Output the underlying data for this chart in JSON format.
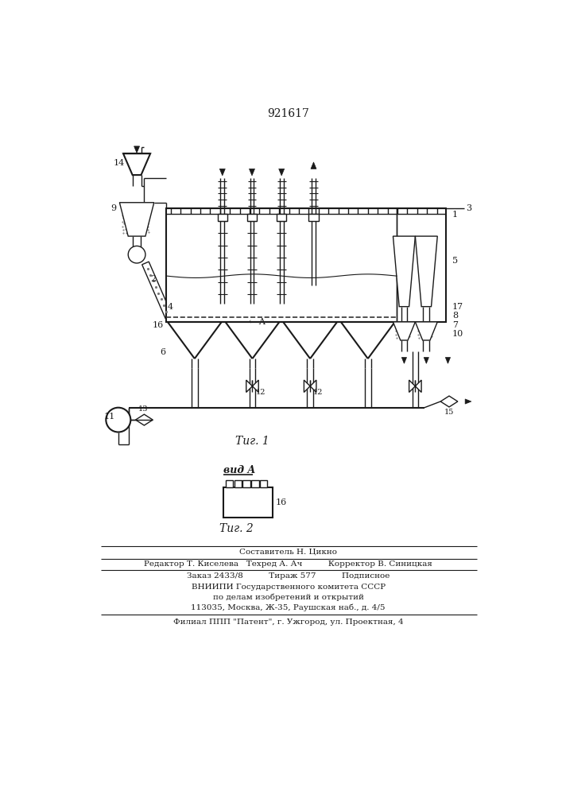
{
  "patent_number": "921617",
  "fig1_label": "Τиг. 1",
  "fig2_label": "Τиг. 2",
  "view_label": "вид A",
  "footer_lines": [
    "Составитель Н. Цикно",
    "Редактор Т. Киселева   Техред А. Ач          Корректор В. Синицкая",
    "Заказ 2433/8          Тираж 577          Подписное",
    "ВНИИПИ Государственного комитета СССР",
    "по делам изобретений и открытий",
    "113035, Москва, Ж-35, Раушская наб., д. 4/5",
    "Филиал ППП \"Патент\", г. Ужгород, ул. Проектная, 4"
  ],
  "bg_color": "#ffffff",
  "line_color": "#1a1a1a"
}
